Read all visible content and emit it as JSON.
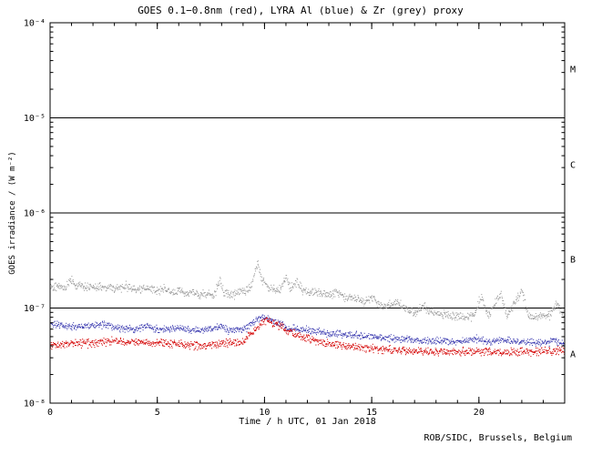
{
  "page": {
    "title": "GOES 0.1−0.8nm (red), LYRA Al (blue) & Zr (grey) proxy",
    "xlabel": "Time / h UTC, 01 Jan 2018",
    "ylabel": "GOES irradiance / (W m⁻²)",
    "credit": "ROB/SIDC, Brussels, Belgium",
    "flare_class_labels": [
      "M",
      "C",
      "B",
      "A"
    ]
  },
  "chart_data": {
    "type": "scatter",
    "title": "GOES 0.1−0.8nm (red), LYRA Al (blue) & Zr (grey) proxy",
    "xlabel": "Time / h UTC, 01 Jan 2018",
    "ylabel": "GOES irradiance / (W m⁻²)",
    "xlim": [
      0,
      24
    ],
    "ylog": true,
    "ylim": [
      1e-08,
      0.0001
    ],
    "x_major_ticks": [
      0,
      5,
      10,
      15,
      20
    ],
    "x_minor_step": 1,
    "y_tick_labels": [
      "10⁻⁴",
      "10⁻⁵",
      "10⁻⁶",
      "10⁻⁷",
      "10⁻⁸"
    ],
    "y_tick_exponents": [
      -4,
      -5,
      -6,
      -7,
      -8
    ],
    "flare_class_lines": [
      1e-05,
      1e-06,
      1e-07
    ],
    "flare_classes": [
      "M",
      "C",
      "B",
      "A"
    ],
    "legend": "colors encode series: red = GOES 0.1-0.8nm, blue = LYRA Al proxy, grey = LYRA Zr proxy",
    "series": [
      {
        "name": "LYRA Zr proxy",
        "color": "#9e9e9e",
        "noise": 0.022,
        "points": [
          [
            0,
            1.7e-07
          ],
          [
            0.7,
            1.65e-07
          ],
          [
            1.0,
            2e-07
          ],
          [
            1.2,
            1.7e-07
          ],
          [
            2.0,
            1.65e-07
          ],
          [
            3.0,
            1.6e-07
          ],
          [
            3.5,
            1.7e-07
          ],
          [
            4.0,
            1.55e-07
          ],
          [
            4.5,
            1.6e-07
          ],
          [
            5.0,
            1.5e-07
          ],
          [
            5.3,
            1.65e-07
          ],
          [
            5.6,
            1.45e-07
          ],
          [
            6.0,
            1.55e-07
          ],
          [
            6.3,
            1.4e-07
          ],
          [
            6.6,
            1.5e-07
          ],
          [
            7.0,
            1.35e-07
          ],
          [
            7.3,
            1.45e-07
          ],
          [
            7.6,
            1.3e-07
          ],
          [
            7.9,
            2e-07
          ],
          [
            8.1,
            1.45e-07
          ],
          [
            8.5,
            1.4e-07
          ],
          [
            9.0,
            1.5e-07
          ],
          [
            9.4,
            1.7e-07
          ],
          [
            9.65,
            3e-07
          ],
          [
            9.9,
            1.9e-07
          ],
          [
            10.3,
            1.6e-07
          ],
          [
            10.7,
            1.55e-07
          ],
          [
            11.0,
            2.1e-07
          ],
          [
            11.2,
            1.6e-07
          ],
          [
            11.5,
            1.9e-07
          ],
          [
            11.8,
            1.5e-07
          ],
          [
            12.5,
            1.45e-07
          ],
          [
            13.0,
            1.35e-07
          ],
          [
            13.4,
            1.5e-07
          ],
          [
            13.8,
            1.25e-07
          ],
          [
            14.2,
            1.3e-07
          ],
          [
            14.6,
            1.15e-07
          ],
          [
            15.0,
            1.3e-07
          ],
          [
            15.3,
            1.1e-07
          ],
          [
            15.8,
            1.05e-07
          ],
          [
            16.2,
            1.15e-07
          ],
          [
            16.6,
            9.5e-08
          ],
          [
            17.0,
            9e-08
          ],
          [
            17.4,
            1.05e-07
          ],
          [
            17.8,
            8.8e-08
          ],
          [
            18.3,
            8.5e-08
          ],
          [
            18.8,
            8.2e-08
          ],
          [
            19.3,
            8e-08
          ],
          [
            19.8,
            8.5e-08
          ],
          [
            20.1,
            1.35e-07
          ],
          [
            20.4,
            8.2e-08
          ],
          [
            21.0,
            1.45e-07
          ],
          [
            21.3,
            8e-08
          ],
          [
            22.0,
            1.55e-07
          ],
          [
            22.3,
            8e-08
          ],
          [
            22.8,
            8e-08
          ],
          [
            23.3,
            8.5e-08
          ],
          [
            23.6,
            1.1e-07
          ],
          [
            24,
            8e-08
          ]
        ]
      },
      {
        "name": "LYRA Al proxy",
        "color": "#3b3bb0",
        "noise": 0.018,
        "points": [
          [
            0,
            6.8e-08
          ],
          [
            0.5,
            6.5e-08
          ],
          [
            1.5,
            6.3e-08
          ],
          [
            2.5,
            6.8e-08
          ],
          [
            3.0,
            6.2e-08
          ],
          [
            4.0,
            6e-08
          ],
          [
            4.5,
            6.5e-08
          ],
          [
            5.0,
            5.9e-08
          ],
          [
            6.0,
            6.2e-08
          ],
          [
            6.5,
            5.8e-08
          ],
          [
            7.5,
            6e-08
          ],
          [
            8.0,
            6.5e-08
          ],
          [
            8.3,
            5.8e-08
          ],
          [
            9.0,
            6e-08
          ],
          [
            9.6,
            7.5e-08
          ],
          [
            10.0,
            8e-08
          ],
          [
            10.5,
            7.2e-08
          ],
          [
            11.0,
            6.3e-08
          ],
          [
            11.5,
            6e-08
          ],
          [
            12.0,
            5.8e-08
          ],
          [
            13.0,
            5.4e-08
          ],
          [
            14.0,
            5.2e-08
          ],
          [
            15.0,
            5e-08
          ],
          [
            16.0,
            4.8e-08
          ],
          [
            17.0,
            4.6e-08
          ],
          [
            18.0,
            4.5e-08
          ],
          [
            19.0,
            4.4e-08
          ],
          [
            20.0,
            4.8e-08
          ],
          [
            20.5,
            4.4e-08
          ],
          [
            21.0,
            4.6e-08
          ],
          [
            22.0,
            4.4e-08
          ],
          [
            23.0,
            4.3e-08
          ],
          [
            23.5,
            4.5e-08
          ],
          [
            24,
            4.2e-08
          ]
        ]
      },
      {
        "name": "GOES 0.1-0.8nm",
        "color": "#d40000",
        "noise": 0.02,
        "points": [
          [
            0,
            4e-08
          ],
          [
            1,
            4.2e-08
          ],
          [
            2,
            4.3e-08
          ],
          [
            3,
            4.5e-08
          ],
          [
            4,
            4.4e-08
          ],
          [
            5,
            4.3e-08
          ],
          [
            6,
            4.2e-08
          ],
          [
            7,
            4e-08
          ],
          [
            8,
            4.2e-08
          ],
          [
            9,
            4.4e-08
          ],
          [
            9.6,
            6e-08
          ],
          [
            10.0,
            7.5e-08
          ],
          [
            10.5,
            6.8e-08
          ],
          [
            11.0,
            5.8e-08
          ],
          [
            11.5,
            5.2e-08
          ],
          [
            12.0,
            4.8e-08
          ],
          [
            12.5,
            4.5e-08
          ],
          [
            13.0,
            4.2e-08
          ],
          [
            14.0,
            3.9e-08
          ],
          [
            15.0,
            3.7e-08
          ],
          [
            16.0,
            3.6e-08
          ],
          [
            17.0,
            3.5e-08
          ],
          [
            18.0,
            3.5e-08
          ],
          [
            19.0,
            3.4e-08
          ],
          [
            20.0,
            3.5e-08
          ],
          [
            21.0,
            3.4e-08
          ],
          [
            22.0,
            3.5e-08
          ],
          [
            23.0,
            3.5e-08
          ],
          [
            24,
            3.6e-08
          ]
        ]
      }
    ]
  }
}
